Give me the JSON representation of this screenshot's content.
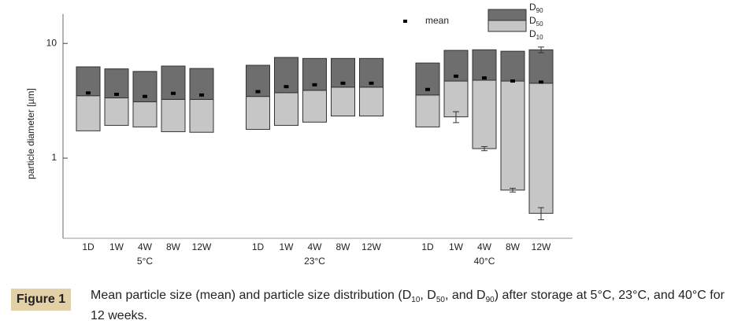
{
  "chart_data": {
    "type": "floating-box",
    "y_label": "particle diameter [µm]",
    "log_scale": true,
    "ylim": [
      0.2,
      18
    ],
    "yticks": [
      1,
      10
    ],
    "groups": [
      {
        "label": "5°C",
        "categories": [
          "1D",
          "1W",
          "4W",
          "8W",
          "12W"
        ]
      },
      {
        "label": "23°C",
        "categories": [
          "1D",
          "1W",
          "4W",
          "8W",
          "12W"
        ]
      },
      {
        "label": "40°C",
        "categories": [
          "1D",
          "1W",
          "4W",
          "8W",
          "12W"
        ]
      }
    ],
    "series": [
      {
        "name": "D10",
        "color": "#c6c6c6",
        "values": [
          1.73,
          1.93,
          1.87,
          1.7,
          1.68,
          1.78,
          1.93,
          2.06,
          2.33,
          2.33,
          1.87,
          2.29,
          1.21,
          0.526,
          0.33
        ],
        "errors": [
          null,
          null,
          null,
          null,
          null,
          null,
          null,
          null,
          null,
          null,
          null,
          0.25,
          0.05,
          0.02,
          0.04
        ]
      },
      {
        "name": "D50",
        "color": "#c6c6c6",
        "values": [
          3.5,
          3.35,
          3.1,
          3.25,
          3.25,
          3.45,
          3.72,
          3.9,
          4.16,
          4.16,
          3.55,
          4.7,
          4.78,
          4.7,
          4.5
        ]
      },
      {
        "name": "D90",
        "color": "#6e6e6e",
        "values": [
          6.25,
          6.0,
          5.7,
          6.35,
          6.05,
          6.45,
          7.55,
          7.4,
          7.4,
          7.4,
          6.75,
          8.7,
          8.8,
          8.55,
          8.8
        ],
        "errors": [
          null,
          null,
          null,
          null,
          null,
          null,
          null,
          null,
          null,
          null,
          null,
          null,
          null,
          null,
          0.5
        ]
      },
      {
        "name": "mean",
        "color": "#000000",
        "values": [
          3.7,
          3.6,
          3.45,
          3.67,
          3.55,
          3.8,
          4.2,
          4.36,
          4.5,
          4.5,
          3.97,
          5.18,
          5.0,
          4.7,
          4.6
        ]
      }
    ]
  },
  "caption": {
    "label": "Figure 1",
    "text": "Mean particle size (mean) and particle size distribution (D10, D50, and D90) after storage at 5°C, 23°C, and 40°C for 12 weeks."
  }
}
